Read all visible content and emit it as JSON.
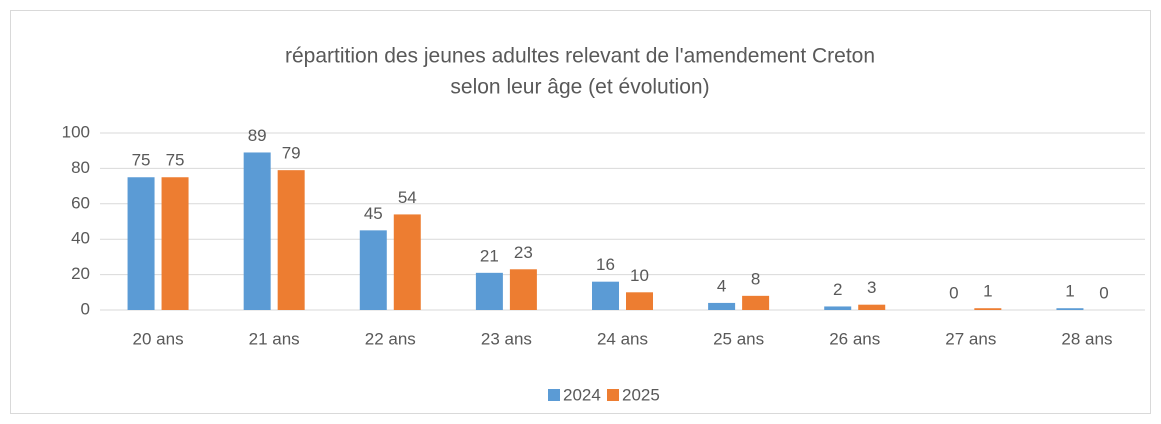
{
  "chart_data": {
    "type": "bar",
    "title": [
      "répartition des jeunes adultes relevant de l'amendement Creton",
      "selon leur âge (et évolution)"
    ],
    "categories": [
      "20 ans",
      "21 ans",
      "22 ans",
      "23 ans",
      "24 ans",
      "25 ans",
      "26 ans",
      "27 ans",
      "28 ans"
    ],
    "series": [
      {
        "name": "2024",
        "color": "#5b9bd5",
        "values": [
          75,
          89,
          45,
          21,
          16,
          4,
          2,
          0,
          1
        ]
      },
      {
        "name": "2025",
        "color": "#ed7d31",
        "values": [
          75,
          79,
          54,
          23,
          10,
          8,
          3,
          1,
          0
        ]
      }
    ],
    "ylim": [
      0,
      100
    ],
    "yticks": [
      0,
      20,
      40,
      60,
      80,
      100
    ],
    "grid": true,
    "legend": "bottom"
  }
}
